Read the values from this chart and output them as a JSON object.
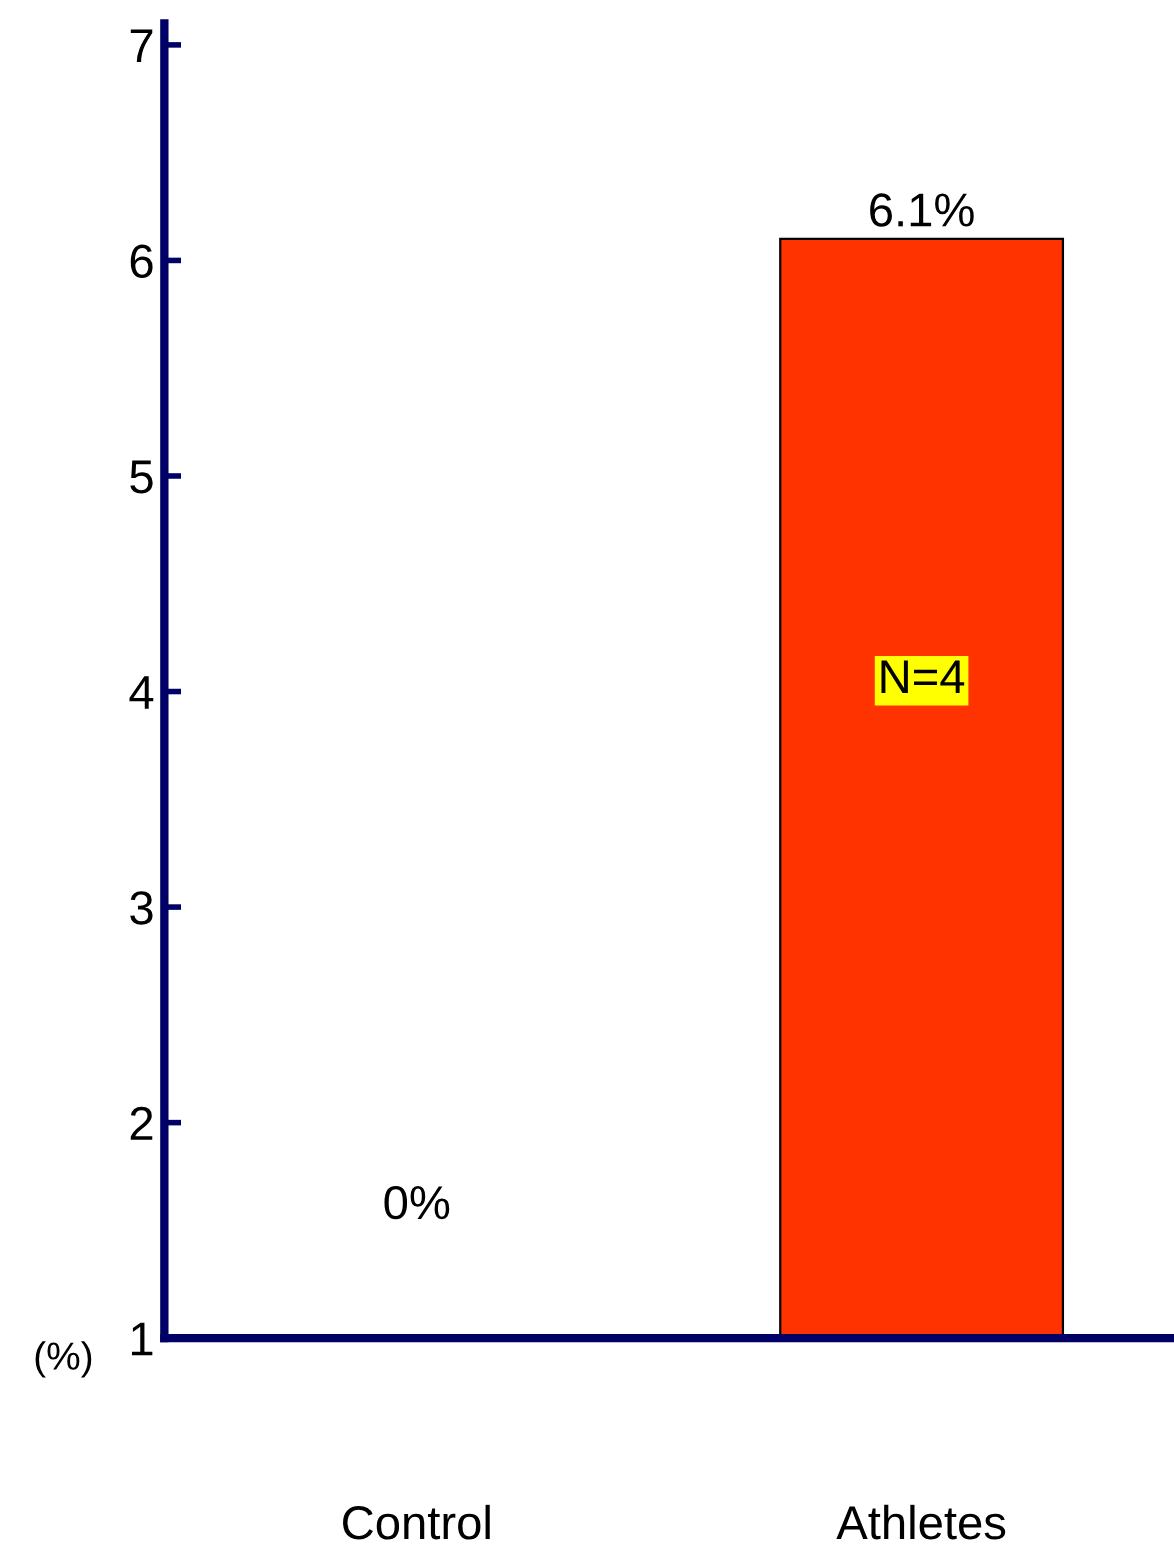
{
  "chart_data": {
    "type": "bar",
    "ylabel": "(%)",
    "categories": [
      "Control",
      "Athletes"
    ],
    "values": [
      null,
      6.1
    ],
    "value_labels": [
      null,
      "6.1%"
    ],
    "color": "#ff3300",
    "ylim": [
      1,
      7.1
    ],
    "yticks": [
      1,
      2,
      3,
      4,
      5,
      6,
      7
    ],
    "grid": false,
    "annotations": [
      "0%",
      "N=4"
    ]
  }
}
